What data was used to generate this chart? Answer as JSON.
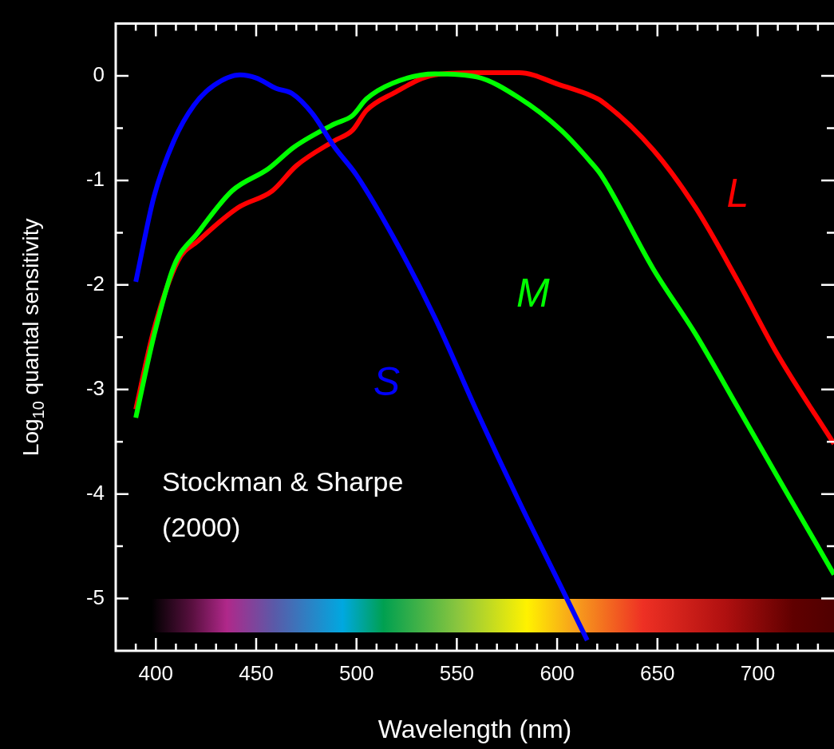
{
  "chart_data": {
    "type": "line",
    "xlabel": "Wavelength (nm)",
    "ylabel": "Log$_{10}$ quantal sensitivity",
    "xlim": [
      380,
      738
    ],
    "ylim": [
      -5.5,
      0.5
    ],
    "xticks": [
      {
        "value": 390,
        "label": null
      },
      400,
      {
        "value": 410,
        "label": null
      },
      {
        "value": 420,
        "label": null
      },
      {
        "value": 430,
        "label": null
      },
      {
        "value": 440,
        "label": null
      },
      450,
      {
        "value": 460,
        "label": null
      },
      {
        "value": 470,
        "label": null
      },
      {
        "value": 480,
        "label": null
      },
      {
        "value": 490,
        "label": null
      },
      500,
      {
        "value": 510,
        "label": null
      },
      {
        "value": 520,
        "label": null
      },
      {
        "value": 530,
        "label": null
      },
      {
        "value": 540,
        "label": null
      },
      550,
      {
        "value": 560,
        "label": null
      },
      {
        "value": 570,
        "label": null
      },
      {
        "value": 580,
        "label": null
      },
      {
        "value": 590,
        "label": null
      },
      600,
      {
        "value": 610,
        "label": null
      },
      {
        "value": 620,
        "label": null
      },
      {
        "value": 630,
        "label": null
      },
      {
        "value": 640,
        "label": null
      },
      650,
      {
        "value": 660,
        "label": null
      },
      {
        "value": 670,
        "label": null
      },
      {
        "value": 680,
        "label": null
      },
      {
        "value": 690,
        "label": null
      },
      700,
      {
        "value": 710,
        "label": null
      },
      {
        "value": 720,
        "label": null
      },
      {
        "value": 730,
        "label": null
      }
    ],
    "yticks": [
      -5,
      {
        "value": -4.5,
        "label": null
      },
      -4,
      {
        "value": -3.5,
        "label": null
      },
      -3,
      {
        "value": -2.5,
        "label": null
      },
      -2,
      {
        "value": -1.5,
        "label": null
      },
      -1,
      {
        "value": -0.5,
        "label": null
      },
      0
    ],
    "marker": "none",
    "line_style": "solid",
    "legend": false,
    "series": [
      {
        "name": "S",
        "color": "#0000ff",
        "x": [
          390,
          399,
          409,
          419,
          429,
          442,
          450,
          460,
          468,
          478,
          489,
          500,
          518,
          539,
          560,
          581,
          602,
          615
        ],
        "values": [
          -1.97,
          -1.16,
          -0.62,
          -0.28,
          -0.09,
          0.01,
          -0.02,
          -0.12,
          -0.17,
          -0.36,
          -0.68,
          -0.95,
          -1.53,
          -2.31,
          -3.21,
          -4.07,
          -4.89,
          -5.4
        ]
      },
      {
        "name": "M",
        "color": "#00ff00",
        "x": [
          390,
          399,
          409,
          421,
          438,
          456,
          469,
          489,
          498,
          505,
          518,
          539,
          560,
          581,
          602,
          617,
          622,
          648,
          669,
          690,
          710,
          738
        ],
        "values": [
          -3.27,
          -2.49,
          -1.82,
          -1.5,
          -1.1,
          -0.89,
          -0.68,
          -0.46,
          -0.38,
          -0.22,
          -0.07,
          0.02,
          -0.01,
          -0.21,
          -0.52,
          -0.83,
          -0.95,
          -1.85,
          -2.47,
          -3.17,
          -3.84,
          -4.77
        ]
      },
      {
        "name": "L",
        "color": "#ff0000",
        "x": [
          390,
          399,
          411,
          421,
          441,
          458,
          470,
          489,
          498,
          505,
          518,
          539,
          560,
          581,
          602,
          617,
          622,
          648,
          669,
          690,
          710,
          738
        ],
        "values": [
          -3.19,
          -2.43,
          -1.77,
          -1.58,
          -1.26,
          -1.1,
          -0.86,
          -0.62,
          -0.52,
          -0.33,
          -0.17,
          0.01,
          0.03,
          0.03,
          -0.09,
          -0.19,
          -0.24,
          -0.71,
          -1.26,
          -1.96,
          -2.67,
          -3.52
        ]
      }
    ],
    "annotations": [
      "Stockman & Sharpe (2000)"
    ]
  }
}
